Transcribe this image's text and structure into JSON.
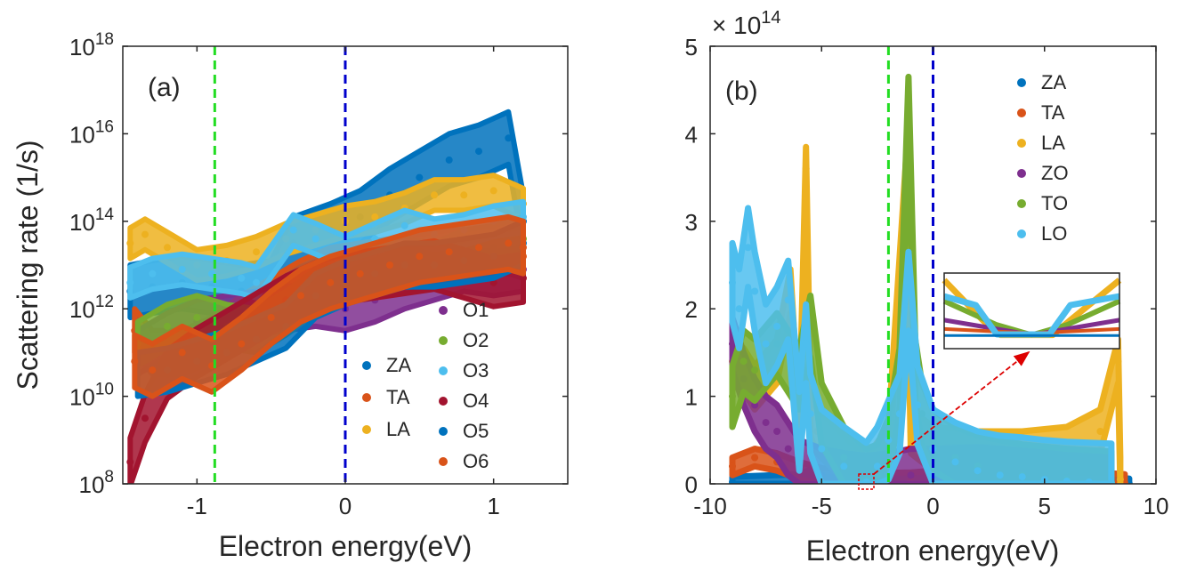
{
  "colors": {
    "ZA": "#0072BD",
    "TA": "#D95319",
    "LA": "#EDB120",
    "ZO": "#7E2F8E",
    "TO": "#77AC30",
    "LO": "#4DBEEE",
    "O1": "#7E2F8E",
    "O2": "#77AC30",
    "O3": "#4DBEEE",
    "O4": "#A2142F",
    "O5": "#0072BD",
    "O6": "#D95319",
    "green_line": "#22DD22",
    "blue_line": "#0000CC",
    "arrow": "#DD0000"
  },
  "chart_data": [
    {
      "type": "scatter",
      "panel_label": "(a)",
      "xlabel": "Electron energy(eV)",
      "ylabel": "Scattering rate (1/s)",
      "xlim": [
        -1.5,
        1.5
      ],
      "ylim_log10": [
        8,
        18
      ],
      "yscale": "log",
      "xticks": [
        -1,
        0,
        1
      ],
      "xtick_labels": [
        "-1",
        "0",
        "1"
      ],
      "yticks_log10": [
        8,
        10,
        12,
        14,
        16,
        18
      ],
      "ytick_base": "10",
      "ytick_exponents": [
        "8",
        "10",
        "12",
        "14",
        "16",
        "18"
      ],
      "vlines": [
        {
          "x": -0.88,
          "color": "green_line",
          "style": "dashed"
        },
        {
          "x": 0.0,
          "color": "blue_line",
          "style": "dashed"
        }
      ],
      "legend_left": [
        "ZA",
        "TA",
        "LA"
      ],
      "legend_right": [
        "O1",
        "O2",
        "O3",
        "O4",
        "O5",
        "O6"
      ],
      "series": [
        {
          "name": "ZA",
          "band": 0.6,
          "x": [
            -1.45,
            -1.3,
            -1.1,
            -0.9,
            -0.7,
            -0.5,
            -0.35,
            -0.1,
            0.1,
            0.3,
            0.5,
            0.7,
            0.9,
            1.1,
            1.2
          ],
          "y_log10": [
            12.4,
            12.5,
            12.6,
            12.5,
            12.4,
            12.5,
            13.5,
            13.8,
            14.1,
            14.6,
            15.0,
            15.4,
            15.6,
            15.9,
            14.0
          ]
        },
        {
          "name": "TA",
          "band": 0.5,
          "x": [
            -1.42,
            -1.3,
            -1.1,
            -0.9,
            -0.7,
            -0.5,
            -0.3,
            -0.1,
            0.1,
            0.3,
            0.5,
            0.7,
            0.9,
            1.1,
            1.2
          ],
          "y_log10": [
            11.5,
            11.0,
            11.0,
            11.3,
            11.8,
            12.2,
            12.6,
            12.9,
            13.0,
            13.1,
            13.2,
            13.3,
            13.3,
            13.3,
            13.2
          ]
        },
        {
          "name": "LA",
          "band": 0.35,
          "x": [
            -1.45,
            -1.35,
            -1.2,
            -1.0,
            -0.8,
            -0.6,
            -0.4,
            -0.2,
            0.0,
            0.2,
            0.4,
            0.6,
            0.8,
            1.0,
            1.2
          ],
          "y_log10": [
            13.5,
            13.7,
            13.4,
            13.0,
            13.1,
            13.3,
            13.6,
            13.8,
            14.0,
            14.1,
            14.3,
            14.6,
            14.6,
            14.7,
            14.4
          ]
        },
        {
          "name": "O1",
          "band": 0.5,
          "x": [
            -1.4,
            -1.2,
            -1.0,
            -0.8,
            -0.6,
            -0.4,
            -0.2,
            0.0,
            0.2,
            0.4,
            0.6,
            0.8,
            1.0,
            1.2
          ],
          "y_log10": [
            11.0,
            11.4,
            11.7,
            11.8,
            11.9,
            12.0,
            12.1,
            12.0,
            12.2,
            12.5,
            12.7,
            12.9,
            12.8,
            12.9
          ]
        },
        {
          "name": "O2",
          "band": 0.5,
          "x": [
            -1.4,
            -1.2,
            -1.0,
            -0.8,
            -0.6,
            -0.4,
            -0.2,
            0.0,
            0.2,
            0.4,
            0.6,
            0.8,
            1.0,
            1.2
          ],
          "y_log10": [
            11.2,
            11.6,
            11.8,
            11.6,
            11.5,
            11.9,
            12.4,
            12.6,
            12.9,
            13.1,
            13.0,
            13.3,
            13.4,
            13.6
          ]
        },
        {
          "name": "O3",
          "band": 0.35,
          "x": [
            -1.45,
            -1.3,
            -1.1,
            -0.9,
            -0.7,
            -0.6,
            -0.35,
            -0.2,
            0.0,
            0.2,
            0.4,
            0.6,
            0.8,
            1.0,
            1.2
          ],
          "y_log10": [
            12.6,
            12.8,
            12.9,
            12.8,
            12.7,
            12.6,
            13.8,
            13.6,
            13.3,
            13.6,
            13.9,
            13.7,
            13.8,
            14.0,
            14.1
          ]
        },
        {
          "name": "O4",
          "band": 0.55,
          "x": [
            -1.45,
            -1.35,
            -1.2,
            -1.0,
            -0.8,
            -0.6,
            -0.4,
            -0.2,
            0.0,
            0.2,
            0.4,
            0.6,
            0.8,
            1.0,
            1.2
          ],
          "y_log10": [
            8.5,
            9.5,
            10.5,
            11.0,
            11.4,
            11.8,
            12.2,
            12.5,
            12.7,
            12.8,
            12.9,
            13.0,
            12.8,
            12.6,
            12.7
          ]
        },
        {
          "name": "O5",
          "band": 0.5,
          "x": [
            -1.4,
            -1.2,
            -1.0,
            -0.8,
            -0.6,
            -0.4,
            -0.2,
            0.0,
            0.2,
            0.4,
            0.6,
            0.8,
            1.0,
            1.2
          ],
          "y_log10": [
            10.5,
            10.6,
            10.8,
            11.0,
            11.3,
            11.6,
            12.3,
            12.6,
            12.8,
            13.0,
            13.0,
            13.1,
            13.2,
            13.5
          ]
        },
        {
          "name": "O6",
          "band": 0.6,
          "x": [
            -1.42,
            -1.3,
            -1.1,
            -0.9,
            -0.7,
            -0.5,
            -0.3,
            -0.1,
            0.1,
            0.3,
            0.5,
            0.7,
            0.9,
            1.1,
            1.2
          ],
          "y_log10": [
            10.8,
            10.6,
            11.0,
            10.7,
            11.2,
            11.8,
            12.3,
            12.6,
            12.8,
            13.0,
            13.2,
            13.3,
            13.4,
            13.5,
            13.4
          ]
        }
      ]
    },
    {
      "type": "scatter",
      "panel_label": "(b)",
      "xlabel": "Electron energy(eV)",
      "ylabel": "",
      "xlim": [
        -10,
        10
      ],
      "ylim": [
        0,
        5
      ],
      "y_multiplier_base": "× 10",
      "y_multiplier_exponent": "14",
      "xticks": [
        -10,
        -5,
        0,
        5,
        10
      ],
      "xtick_labels": [
        "-10",
        "-5",
        "0",
        "5",
        "10"
      ],
      "yticks": [
        0,
        1,
        2,
        3,
        4,
        5
      ],
      "ytick_labels": [
        "0",
        "1",
        "2",
        "3",
        "4",
        "5"
      ],
      "vlines": [
        {
          "x": -2.0,
          "color": "green_line",
          "style": "dashed"
        },
        {
          "x": 0.0,
          "color": "blue_line",
          "style": "dashed"
        }
      ],
      "legend": [
        "ZA",
        "TA",
        "LA",
        "ZO",
        "TO",
        "LO"
      ],
      "inset": {
        "note": "zoom of red dotted region near x = -3, y = 0"
      },
      "series": [
        {
          "name": "ZA",
          "band": 0.06,
          "x": [
            -9,
            -6,
            -5.5,
            -5,
            -3,
            -1,
            0,
            2,
            4,
            6,
            8,
            8.8
          ],
          "y": [
            0.02,
            0.05,
            0.1,
            0.02,
            0.01,
            0.02,
            0.02,
            0.02,
            0.01,
            0.01,
            0.01,
            0.0
          ]
        },
        {
          "name": "TA",
          "band": 0.1,
          "x": [
            -9,
            -8,
            -7,
            -6,
            -5,
            -3,
            -1,
            0,
            2,
            4,
            6,
            8,
            8.6
          ],
          "y": [
            0.2,
            0.3,
            0.25,
            0.15,
            0.08,
            0.02,
            0.03,
            0.05,
            0.06,
            0.04,
            0.03,
            0.02,
            0.01
          ]
        },
        {
          "name": "LA",
          "band": 0.25,
          "x": [
            -9,
            -8.5,
            -8,
            -7,
            -6.4,
            -6,
            -5.7,
            -5.5,
            -5.2,
            -4,
            -3,
            -2,
            -1.2,
            -1,
            0,
            2,
            4,
            6,
            7.5,
            8.3,
            8.4
          ],
          "y": [
            1.4,
            1.3,
            1.1,
            1.4,
            2.2,
            0.5,
            3.6,
            0.8,
            0.6,
            0.3,
            0.05,
            0.4,
            3.5,
            0.6,
            0.4,
            0.35,
            0.35,
            0.4,
            0.6,
            1.4,
            0.05
          ]
        },
        {
          "name": "ZO",
          "band": 0.3,
          "x": [
            -9,
            -8.5,
            -8,
            -7.5,
            -7,
            -6.5,
            -6,
            -5,
            -4,
            -3,
            -2,
            -1,
            0,
            2,
            4,
            6,
            8
          ],
          "y": [
            1.6,
            1.2,
            0.9,
            0.7,
            0.6,
            0.4,
            0.2,
            0.1,
            0.05,
            0.02,
            0.05,
            0.1,
            0.1,
            0.12,
            0.08,
            0.05,
            0.03
          ]
        },
        {
          "name": "TO",
          "band": 0.35,
          "x": [
            -9,
            -8.5,
            -8,
            -7,
            -6,
            -5.5,
            -5,
            -4,
            -3,
            -2.5,
            -2,
            -1.5,
            -1.1,
            -0.8,
            -0.5,
            0,
            1,
            2,
            4,
            6,
            8
          ],
          "y": [
            1.0,
            1.4,
            1.3,
            1.6,
            1.2,
            1.8,
            0.8,
            0.3,
            0.05,
            0.1,
            0.4,
            1.2,
            4.3,
            1.3,
            0.8,
            0.5,
            0.3,
            0.2,
            0.1,
            0.05,
            0.02
          ]
        },
        {
          "name": "LO",
          "band": 0.45,
          "x": [
            -9,
            -8.7,
            -8.3,
            -8,
            -7.5,
            -7,
            -6.5,
            -6,
            -5.7,
            -5.5,
            -5,
            -4,
            -3,
            -2.5,
            -2,
            -1.5,
            -1.1,
            -0.7,
            0,
            1,
            2,
            3,
            4,
            5,
            6,
            7,
            8
          ],
          "y": [
            2.3,
            2.0,
            2.7,
            2.2,
            1.6,
            1.8,
            2.1,
            0.6,
            1.6,
            0.8,
            0.4,
            0.2,
            0.02,
            0.2,
            0.5,
            0.8,
            2.2,
            0.9,
            0.4,
            0.25,
            0.15,
            0.1,
            0.08,
            0.05,
            0.03,
            0.02,
            0.01
          ]
        }
      ]
    }
  ]
}
